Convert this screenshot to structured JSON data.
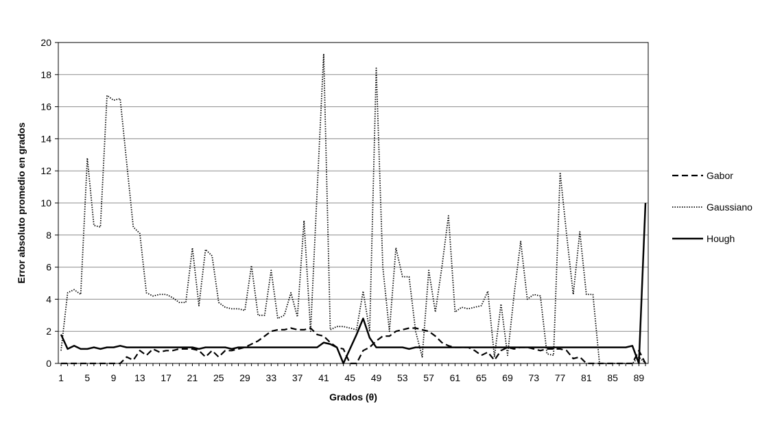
{
  "chart_data": {
    "type": "line",
    "xlabel": "Grados (θ)",
    "ylabel": "Error absoluto promedio en grados",
    "xlim": [
      1,
      90
    ],
    "ylim": [
      0,
      20
    ],
    "y_ticks": [
      0,
      2,
      4,
      6,
      8,
      10,
      12,
      14,
      16,
      18,
      20
    ],
    "x_ticks": [
      1,
      5,
      9,
      13,
      17,
      21,
      25,
      29,
      33,
      37,
      41,
      45,
      49,
      53,
      57,
      61,
      65,
      69,
      73,
      77,
      81,
      85,
      89
    ],
    "grid": "horizontal",
    "legend_position": "right",
    "x": [
      1,
      2,
      3,
      4,
      5,
      6,
      7,
      8,
      9,
      10,
      11,
      12,
      13,
      14,
      15,
      16,
      17,
      18,
      19,
      20,
      21,
      22,
      23,
      24,
      25,
      26,
      27,
      28,
      29,
      30,
      31,
      32,
      33,
      34,
      35,
      36,
      37,
      38,
      39,
      40,
      41,
      42,
      43,
      44,
      45,
      46,
      47,
      48,
      49,
      50,
      51,
      52,
      53,
      54,
      55,
      56,
      57,
      58,
      59,
      60,
      61,
      62,
      63,
      64,
      65,
      66,
      67,
      68,
      69,
      70,
      71,
      72,
      73,
      74,
      75,
      76,
      77,
      78,
      79,
      80,
      81,
      82,
      83,
      84,
      85,
      86,
      87,
      88,
      89,
      90
    ],
    "series": [
      {
        "name": "Gabor",
        "style": "dashed",
        "values": [
          0,
          0,
          0,
          0,
          0,
          0,
          0,
          0,
          0,
          0,
          0.4,
          0.2,
          0.8,
          0.5,
          0.9,
          0.7,
          0.8,
          0.8,
          0.9,
          0.9,
          0.9,
          0.8,
          0.4,
          0.8,
          0.4,
          0.8,
          0.8,
          0.9,
          1.0,
          1.2,
          1.4,
          1.7,
          2.0,
          2.1,
          2.1,
          2.2,
          2.1,
          2.1,
          2.2,
          1.8,
          1.7,
          1.3,
          1.0,
          0.9,
          0,
          0,
          0.8,
          1.0,
          1.4,
          1.7,
          1.7,
          2.0,
          2.1,
          2.2,
          2.2,
          2.1,
          2.0,
          1.7,
          1.3,
          1.1,
          1.0,
          1.0,
          1.0,
          0.8,
          0.5,
          0.7,
          0.2,
          0.8,
          1.0,
          0.9,
          1.0,
          1.0,
          0.9,
          0.8,
          0.9,
          0.9,
          0.9,
          0.8,
          0.3,
          0.4,
          0,
          0,
          0,
          0,
          0,
          0,
          0,
          0,
          0.8,
          0
        ]
      },
      {
        "name": "Gaussiano",
        "style": "dotted",
        "values": [
          0.8,
          4.4,
          4.6,
          4.3,
          12.8,
          8.6,
          8.5,
          16.7,
          16.4,
          16.5,
          12.5,
          8.5,
          8.1,
          4.4,
          4.2,
          4.3,
          4.3,
          4.1,
          3.8,
          3.8,
          7.2,
          3.6,
          7.1,
          6.7,
          3.8,
          3.5,
          3.4,
          3.4,
          3.3,
          6.1,
          3.0,
          3.0,
          5.8,
          2.8,
          3.0,
          4.4,
          2.9,
          8.9,
          2.0,
          10.7,
          19.3,
          2.1,
          2.3,
          2.3,
          2.2,
          2.1,
          4.5,
          2.0,
          18.4,
          6.0,
          2.0,
          7.2,
          5.4,
          5.4,
          2.0,
          0.4,
          5.8,
          3.2,
          6.0,
          9.2,
          3.2,
          3.5,
          3.4,
          3.5,
          3.6,
          4.5,
          0.4,
          3.7,
          0.5,
          4.3,
          7.6,
          4.0,
          4.3,
          4.2,
          0.6,
          0.5,
          11.9,
          8.0,
          4.3,
          8.2,
          4.3,
          4.3,
          0,
          0,
          0,
          0,
          0,
          0,
          0.4,
          0
        ]
      },
      {
        "name": "Hough",
        "style": "solid",
        "values": [
          1.8,
          0.9,
          1.1,
          0.9,
          0.9,
          1.0,
          0.9,
          1.0,
          1.0,
          1.1,
          1.0,
          1.0,
          1.0,
          1.0,
          1.0,
          1.0,
          1.0,
          1.0,
          1.0,
          1.0,
          1.0,
          0.9,
          1.0,
          1.0,
          1.0,
          1.0,
          0.9,
          1.0,
          1.0,
          1.0,
          1.0,
          1.0,
          1.0,
          1.0,
          1.0,
          1.0,
          1.0,
          1.0,
          1.0,
          1.0,
          1.3,
          1.2,
          1.0,
          0,
          0.9,
          1.8,
          2.8,
          1.6,
          1.0,
          1.0,
          1.0,
          1.0,
          1.0,
          0.9,
          1.0,
          1.0,
          1.0,
          1.0,
          1.0,
          1.0,
          1.0,
          1.0,
          1.0,
          1.0,
          1.0,
          1.0,
          1.0,
          1.0,
          1.0,
          1.0,
          1.0,
          1.0,
          1.0,
          1.0,
          1.0,
          1.0,
          1.0,
          1.0,
          1.0,
          1.0,
          1.0,
          1.0,
          1.0,
          1.0,
          1.0,
          1.0,
          1.0,
          1.1,
          0,
          10
        ]
      }
    ]
  }
}
